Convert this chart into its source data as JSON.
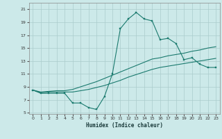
{
  "xlabel": "Humidex (Indice chaleur)",
  "background_color": "#cce9e9",
  "grid_color": "#aacccc",
  "line_color": "#1a7a6e",
  "xlim": [
    -0.5,
    23.5
  ],
  "ylim": [
    4.8,
    22.0
  ],
  "xticks": [
    0,
    1,
    2,
    3,
    4,
    5,
    6,
    7,
    8,
    9,
    10,
    11,
    12,
    13,
    14,
    15,
    16,
    17,
    18,
    19,
    20,
    21,
    22,
    23
  ],
  "yticks": [
    5,
    7,
    9,
    11,
    13,
    15,
    17,
    19,
    21
  ],
  "line1_x": [
    0,
    1,
    2,
    3,
    4,
    5,
    6,
    7,
    8,
    9,
    10,
    11,
    12,
    13,
    14,
    15,
    16,
    17,
    18,
    19,
    20,
    21,
    22,
    23
  ],
  "line1_y": [
    8.5,
    8.0,
    8.0,
    8.0,
    8.0,
    6.5,
    6.5,
    5.8,
    5.5,
    7.5,
    11.0,
    18.0,
    19.5,
    20.5,
    19.5,
    19.2,
    16.3,
    16.5,
    15.7,
    13.2,
    13.5,
    12.5,
    12.0,
    12.0
  ],
  "line2_x": [
    0,
    1,
    2,
    3,
    4,
    5,
    6,
    7,
    8,
    9,
    10,
    11,
    12,
    13,
    14,
    15,
    16,
    17,
    18,
    19,
    20,
    21,
    22,
    23
  ],
  "line2_y": [
    8.5,
    8.2,
    8.3,
    8.4,
    8.4,
    8.6,
    9.0,
    9.4,
    9.8,
    10.3,
    10.8,
    11.3,
    11.8,
    12.3,
    12.8,
    13.3,
    13.5,
    13.8,
    14.0,
    14.2,
    14.5,
    14.7,
    15.0,
    15.2
  ],
  "line3_x": [
    0,
    1,
    2,
    3,
    4,
    5,
    6,
    7,
    8,
    9,
    10,
    11,
    12,
    13,
    14,
    15,
    16,
    17,
    18,
    19,
    20,
    21,
    22,
    23
  ],
  "line3_y": [
    8.5,
    8.1,
    8.2,
    8.2,
    8.2,
    8.2,
    8.4,
    8.6,
    8.9,
    9.2,
    9.6,
    10.0,
    10.5,
    10.9,
    11.3,
    11.7,
    12.0,
    12.2,
    12.4,
    12.6,
    12.8,
    13.0,
    13.2,
    13.4
  ]
}
